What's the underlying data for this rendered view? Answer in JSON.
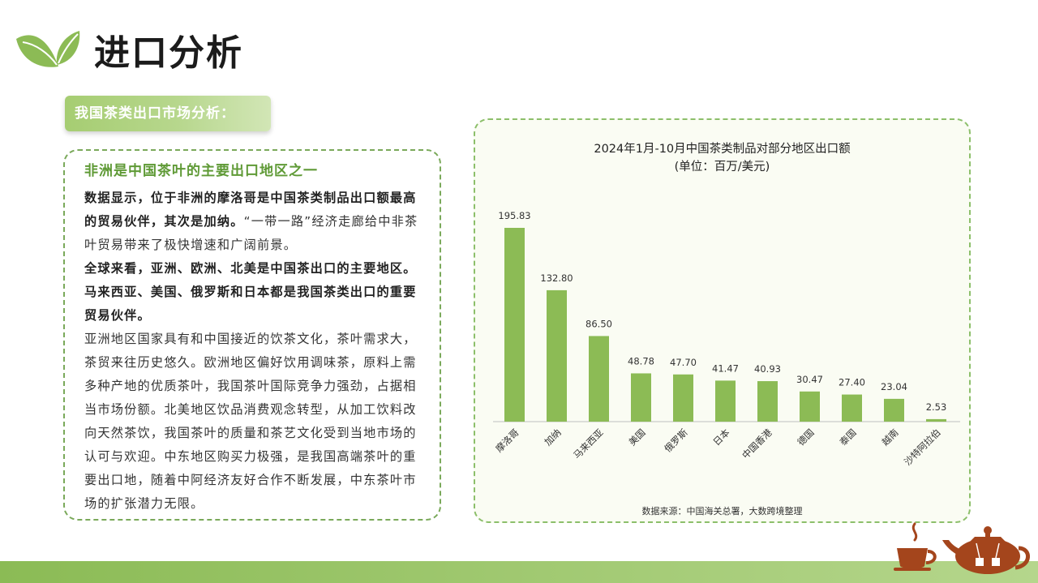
{
  "page": {
    "title": "进口分析",
    "section_tab": "我国茶类出口市场分析："
  },
  "text_card": {
    "heading": "非洲是中国茶叶的主要出口地区之一",
    "paragraphs": [
      {
        "segments": [
          {
            "text": "数据显示，位于非洲的摩洛哥是中国茶类制品出口额最高的贸易伙伴，其次是加纳。",
            "bold": true
          },
          {
            "text": "“一带一路”经济走廊给中非茶叶贸易带来了极快增速和广阔前景。",
            "bold": false
          }
        ]
      },
      {
        "segments": [
          {
            "text": "全球来看，亚洲、欧洲、北美是中国茶出口的主要地区。马来西亚、美国、俄罗斯和日本都是我国茶类出口的重要贸易伙伴。",
            "bold": true
          }
        ]
      },
      {
        "segments": [
          {
            "text": "亚洲地区国家具有和中国接近的饮茶文化，茶叶需求大，茶贸来往历史悠久。欧洲地区偏好饮用调味茶，原料上需多种产地的优质茶叶，我国茶叶国际竞争力强劲，占据相当市场份额。北美地区饮品消费观念转型，从加工饮料改向天然茶饮，我国茶叶的质量和茶艺文化受到当地市场的认可与欢迎。中东地区购买力极强，是我国高端茶叶的重要出口地，随着中阿经济友好合作不断发展，中东茶叶市场的扩张潜力无限。",
            "bold": false
          }
        ]
      }
    ]
  },
  "chart_data": {
    "type": "bar",
    "title": "2024年1月-10月中国茶类制品对部分地区出口额",
    "subtitle": "(单位：百万/美元)",
    "categories": [
      "摩洛哥",
      "加纳",
      "马来西亚",
      "美国",
      "俄罗斯",
      "日本",
      "中国香港",
      "德国",
      "泰国",
      "越南",
      "沙特阿拉伯"
    ],
    "values": [
      195.83,
      132.8,
      86.5,
      48.78,
      47.7,
      41.47,
      40.93,
      30.47,
      27.4,
      23.04,
      2.53
    ],
    "value_labels": [
      "195.83",
      "132.80",
      "86.50",
      "48.78",
      "47.70",
      "41.47",
      "40.93",
      "30.47",
      "27.40",
      "23.04",
      "2.53"
    ],
    "xlabel": "",
    "ylabel": "",
    "ylim": [
      0,
      195.83
    ],
    "grid": false,
    "legend": "none",
    "bar_color": "#8cbb55",
    "source": "数据来源：中国海关总署，大数跨境整理"
  },
  "colors": {
    "accent_green": "#8cbb55",
    "heading_green": "#5f9a36",
    "teapot_brown": "#a4451c"
  },
  "icons": {
    "logo": "leaf-icon",
    "decoration": "teapot-icon"
  }
}
